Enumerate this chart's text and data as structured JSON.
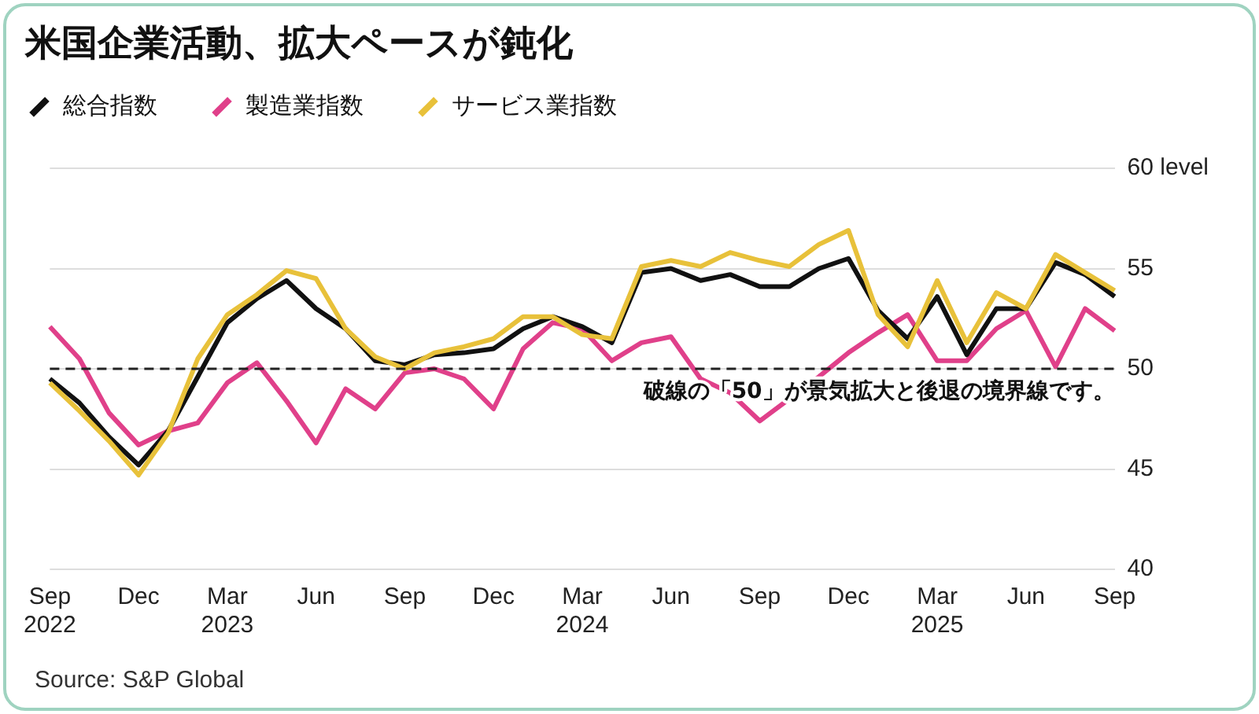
{
  "chart_data": {
    "type": "line",
    "title": "米国企業活動、拡大ペースが鈍化",
    "categories": [
      "Sep\n2022",
      null,
      null,
      "Dec",
      null,
      null,
      "Mar\n2023",
      null,
      null,
      "Jun",
      null,
      null,
      "Sep",
      null,
      null,
      "Dec",
      null,
      null,
      "Mar\n2024",
      null,
      null,
      "Jun",
      null,
      null,
      "Sep",
      null,
      null,
      "Dec",
      null,
      null,
      "Mar\n2025",
      null,
      null,
      "Jun",
      null,
      null,
      "Sep"
    ],
    "series": [
      {
        "name": "総合指数",
        "color": "#111111",
        "values": [
          49.5,
          48.3,
          46.6,
          45.2,
          46.9,
          49.6,
          52.3,
          53.5,
          54.4,
          53.0,
          52.0,
          50.4,
          50.2,
          50.7,
          50.8,
          51.0,
          52.0,
          52.6,
          52.1,
          51.3,
          54.8,
          55.0,
          54.4,
          54.7,
          54.1,
          54.1,
          55.0,
          55.5,
          52.9,
          51.5,
          53.6,
          50.7,
          53.0,
          53.0,
          55.3,
          54.7,
          53.6
        ]
      },
      {
        "name": "製造業指数",
        "color": "#e0408a",
        "values": [
          52.1,
          50.5,
          47.8,
          46.2,
          46.9,
          47.3,
          49.3,
          50.3,
          48.4,
          46.3,
          49.0,
          48.0,
          49.8,
          50.0,
          49.5,
          48.0,
          51.0,
          52.3,
          52.0,
          50.4,
          51.3,
          51.6,
          49.5,
          48.8,
          47.4,
          48.5,
          49.6,
          50.8,
          51.8,
          52.7,
          50.4,
          50.4,
          52.0,
          52.9,
          50.1,
          53.0,
          51.9
        ]
      },
      {
        "name": "サービス業指数",
        "color": "#e8c13a",
        "values": [
          49.3,
          47.9,
          46.4,
          44.7,
          46.8,
          50.5,
          52.7,
          53.7,
          54.9,
          54.5,
          52.0,
          50.6,
          50.0,
          50.8,
          51.1,
          51.5,
          52.6,
          52.6,
          51.7,
          51.5,
          55.1,
          55.4,
          55.1,
          55.8,
          55.4,
          55.1,
          56.2,
          56.9,
          52.7,
          51.1,
          54.4,
          51.3,
          53.8,
          53.0,
          55.7,
          54.8,
          53.9
        ]
      }
    ],
    "ylim": [
      40,
      60
    ],
    "yticks": [
      40,
      45,
      50,
      55,
      {
        "value": 60,
        "label": "60 level"
      }
    ],
    "grid": "y",
    "legend": "top left",
    "marker": "none",
    "line_style": "solid",
    "ref_lines": [
      {
        "axis": "y",
        "value": 50,
        "label": "破線の「50」が景気拡大と後退の境界線です。",
        "color": "#222222",
        "line_style": "dashed"
      }
    ],
    "annotations": [
      "Source: S&P Global"
    ]
  }
}
